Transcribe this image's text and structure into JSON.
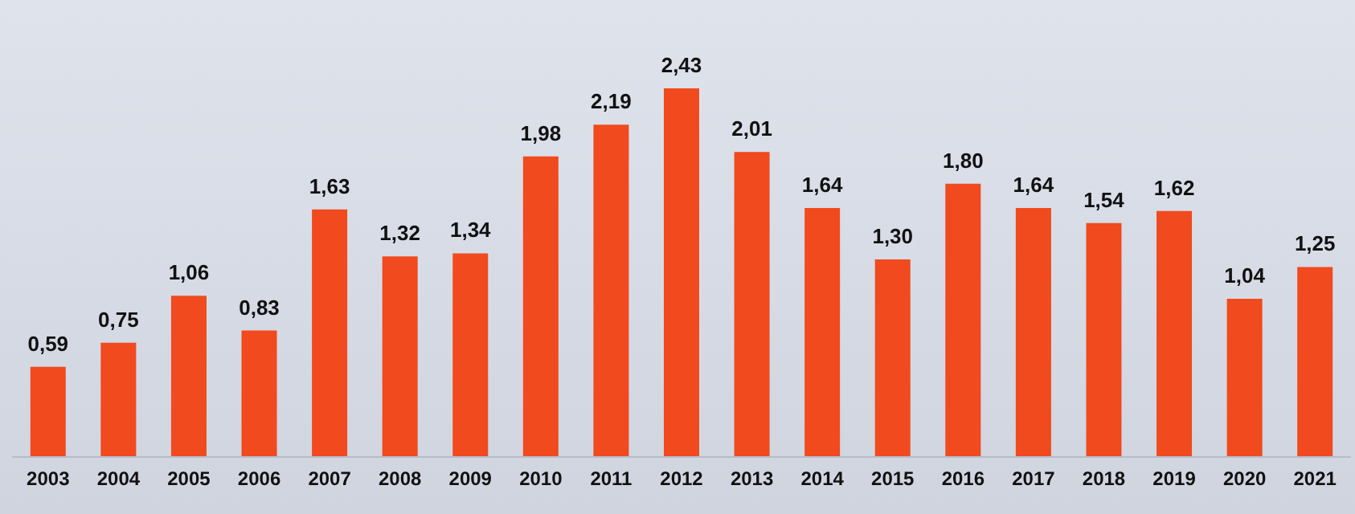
{
  "chart_data": {
    "type": "bar",
    "categories": [
      "2003",
      "2004",
      "2005",
      "2006",
      "2007",
      "2008",
      "2009",
      "2010",
      "2011",
      "2012",
      "2013",
      "2014",
      "2015",
      "2016",
      "2017",
      "2018",
      "2019",
      "2020",
      "2021"
    ],
    "values": [
      0.59,
      0.75,
      1.06,
      0.83,
      1.63,
      1.32,
      1.34,
      1.98,
      2.19,
      2.43,
      2.01,
      1.64,
      1.3,
      1.8,
      1.64,
      1.54,
      1.62,
      1.04,
      1.25
    ],
    "value_labels": [
      "0,59",
      "0,75",
      "1,06",
      "0,83",
      "1,63",
      "1,32",
      "1,34",
      "1,98",
      "2,19",
      "2,43",
      "2,01",
      "1,64",
      "1,30",
      "1,80",
      "1,64",
      "1,54",
      "1,62",
      "1,04",
      "1,25"
    ],
    "color": "#f04a1e"
  }
}
